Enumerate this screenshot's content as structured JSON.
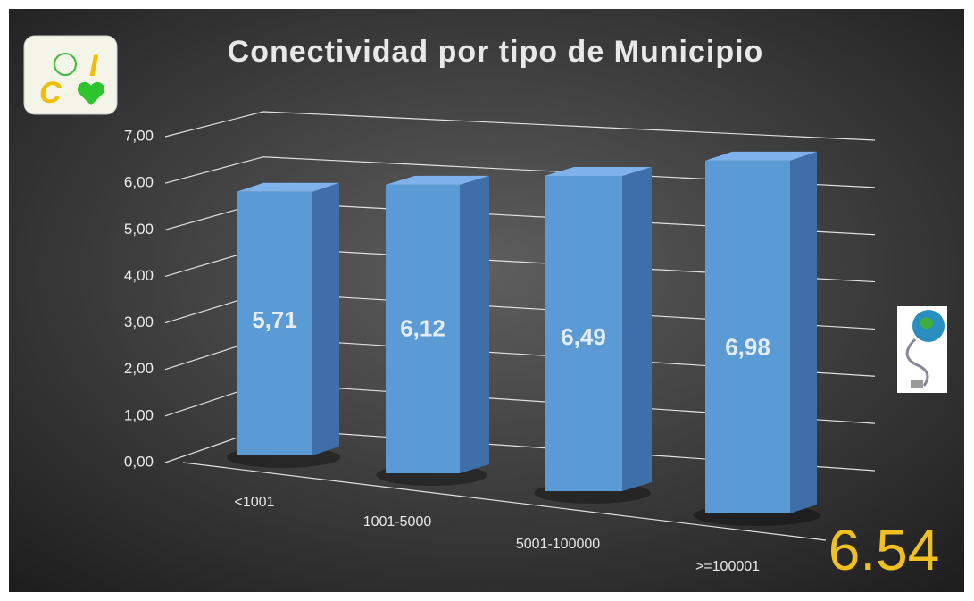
{
  "chart_data": {
    "type": "bar3d",
    "title": "Conectividad por tipo de Municipio",
    "categories": [
      "<1001",
      "1001-5000",
      "5001-100000",
      ">=100001"
    ],
    "values": [
      5.71,
      6.12,
      6.49,
      6.98
    ],
    "value_labels": [
      "5,71",
      "6,12",
      "6,49",
      "6,98"
    ],
    "color": "#5b9bd5",
    "ylim": [
      0,
      7
    ],
    "yticks": [
      {
        "value": 0,
        "label": "0,00"
      },
      {
        "value": 1,
        "label": "1,00"
      },
      {
        "value": 2,
        "label": "2,00"
      },
      {
        "value": 3,
        "label": "3,00"
      },
      {
        "value": 4,
        "label": "4,00"
      },
      {
        "value": 5,
        "label": "5,00"
      },
      {
        "value": 6,
        "label": "6,00"
      },
      {
        "value": 7,
        "label": "7,00"
      }
    ],
    "grid": true,
    "annotation": "6.54"
  }
}
